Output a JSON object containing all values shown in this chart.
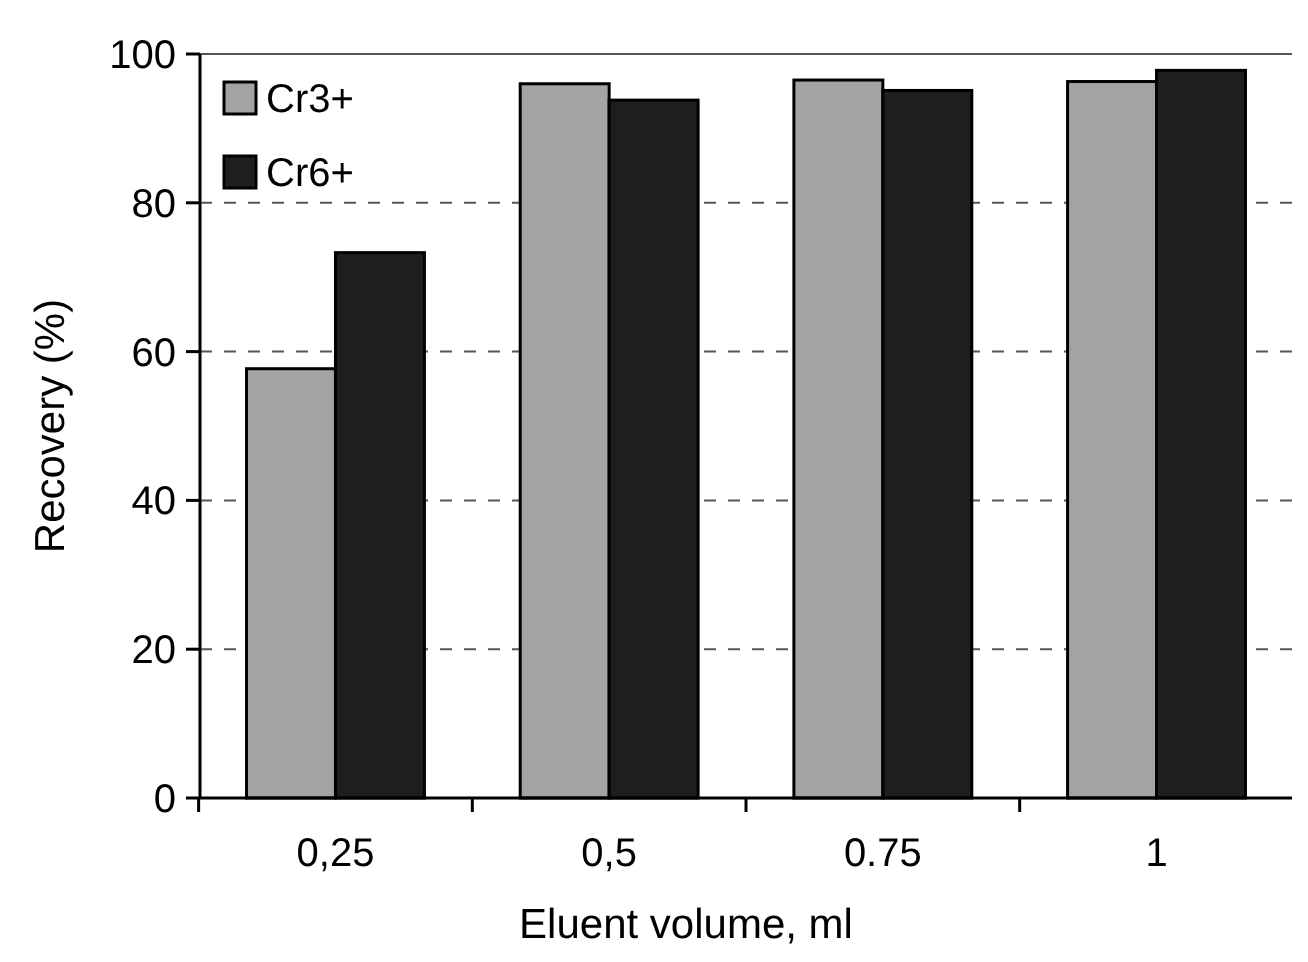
{
  "chart_data": {
    "type": "bar",
    "xlabel": "Eluent volume, ml",
    "ylabel": "Recovery (%)",
    "categories": [
      "0,25",
      "0,5",
      "0.75",
      "1"
    ],
    "series": [
      {
        "name": "Cr3+",
        "color": "#a3a3a3",
        "values": [
          57.7,
          96,
          96.5,
          96.3
        ]
      },
      {
        "name": "Cr6+",
        "color": "#1e1e1e",
        "values": [
          73.3,
          93.8,
          95.1,
          97.8
        ]
      }
    ],
    "ylim": [
      0,
      100
    ],
    "yticks": [
      0,
      20,
      40,
      60,
      80,
      100
    ],
    "grid": "y",
    "legend": "top left"
  }
}
